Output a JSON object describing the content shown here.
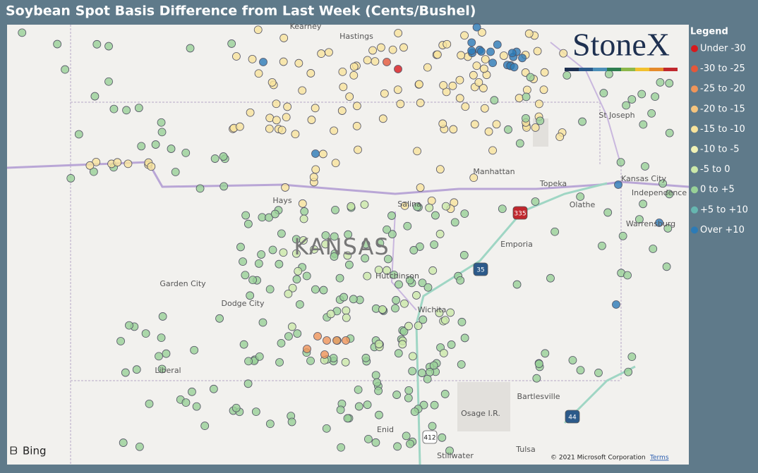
{
  "title": "Soybean Spot Basis Difference from Last Week (Cents/Bushel)",
  "legend": {
    "title": "Legend",
    "items": [
      {
        "label": "Under -30",
        "color": "#d7191c"
      },
      {
        "label": "-30 to -25",
        "color": "#e4573a"
      },
      {
        "label": "-25 to -20",
        "color": "#ef955a"
      },
      {
        "label": "-20 to -15",
        "color": "#f5c47e"
      },
      {
        "label": "-15 to -10",
        "color": "#f8e39c"
      },
      {
        "label": "-10 to -5",
        "color": "#f1f2b6"
      },
      {
        "label": "-5 to 0",
        "color": "#cbe8a9"
      },
      {
        "label": "0 to +5",
        "color": "#98d197"
      },
      {
        "label": "+5 to +10",
        "color": "#66b6b0"
      },
      {
        "label": "Over +10",
        "color": "#2c7bb6"
      }
    ]
  },
  "map": {
    "labels": [
      "Kearney",
      "Hastings",
      "St Joseph",
      "Manhattan",
      "Kansas City",
      "Independence",
      "Topeka",
      "Olathe",
      "Hays",
      "Salina",
      "Warrensburg",
      "Emporia",
      "Garden City",
      "Dodge City",
      "Hutchinson",
      "Wichita",
      "Liberal",
      "Bartlesville",
      "Osage I.R.",
      "Enid",
      "Tulsa",
      "Stillwater"
    ],
    "state": "KANSAS",
    "shields": [
      "335",
      "35",
      "412",
      "44"
    ],
    "brand": "StoneX",
    "attribution": "Bing",
    "copyright": "© 2021 Microsoft Corporation",
    "terms": "Terms"
  }
}
